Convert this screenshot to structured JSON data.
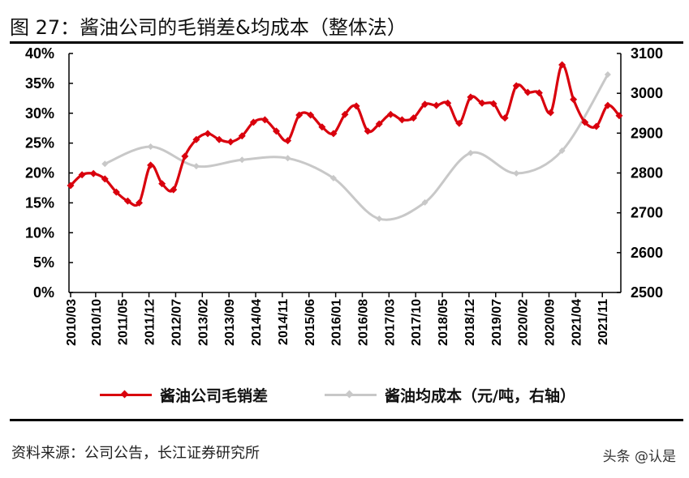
{
  "title": "图 27：酱油公司的毛销差&均成本（整体法）",
  "source": "资料来源：公司公告，长江证券研究所",
  "watermark": "头条 @认是",
  "chart_data": {
    "type": "line",
    "title": "酱油公司的毛销差&均成本（整体法）",
    "left_axis": {
      "ylim": [
        0,
        40
      ],
      "ticks": [
        "0%",
        "5%",
        "10%",
        "15%",
        "20%",
        "25%",
        "30%",
        "35%",
        "40%"
      ]
    },
    "right_axis": {
      "ylim": [
        2500,
        3100
      ],
      "ticks": [
        "2500",
        "2600",
        "2700",
        "2800",
        "2900",
        "3000",
        "3100"
      ]
    },
    "x_tick_labels": [
      "2010/03",
      "2010/10",
      "2011/05",
      "2011/12",
      "2012/07",
      "2013/02",
      "2013/09",
      "2014/04",
      "2014/11",
      "2015/06",
      "2016/01",
      "2016/08",
      "2017/03",
      "2017/10",
      "2018/05",
      "2018/12",
      "2019/07",
      "2020/02",
      "2020/09",
      "2021/04",
      "2021/11"
    ],
    "grid": false,
    "legend_position": "bottom",
    "series": [
      {
        "name": "酱油公司毛销差",
        "axis": "left",
        "color": "#d9000d",
        "x": [
          "2010/03",
          "2010/06",
          "2010/09",
          "2010/12",
          "2011/03",
          "2011/06",
          "2011/09",
          "2011/12",
          "2012/03",
          "2012/06",
          "2012/09",
          "2012/12",
          "2013/03",
          "2013/06",
          "2013/09",
          "2013/12",
          "2014/03",
          "2014/06",
          "2014/09",
          "2014/12",
          "2015/03",
          "2015/06",
          "2015/09",
          "2015/12",
          "2016/03",
          "2016/06",
          "2016/09",
          "2016/12",
          "2017/03",
          "2017/06",
          "2017/09",
          "2017/12",
          "2018/03",
          "2018/06",
          "2018/09",
          "2018/12",
          "2019/03",
          "2019/06",
          "2019/09",
          "2019/12",
          "2020/03",
          "2020/06",
          "2020/09",
          "2020/12",
          "2021/03",
          "2021/06",
          "2021/09",
          "2021/12",
          "2022/03"
        ],
        "values": [
          17.9,
          19.7,
          19.9,
          19.0,
          16.8,
          15.3,
          15.0,
          21.3,
          18.2,
          17.2,
          22.8,
          25.6,
          26.6,
          25.6,
          25.2,
          26.2,
          28.5,
          28.9,
          27.0,
          25.4,
          29.7,
          29.7,
          27.7,
          26.6,
          29.8,
          31.2,
          27.0,
          28.2,
          29.8,
          28.9,
          29.2,
          31.5,
          31.3,
          31.7,
          28.3,
          32.7,
          31.7,
          31.6,
          29.2,
          34.6,
          33.5,
          33.4,
          30.1,
          38.1,
          32.3,
          28.5,
          27.8,
          31.3,
          29.6
        ]
      },
      {
        "name": "酱油均成本（元/吨，右轴）",
        "axis": "right",
        "color": "#c8c8c8",
        "x": [
          "2010/12",
          "2011/12",
          "2012/12",
          "2013/12",
          "2014/12",
          "2015/12",
          "2016/12",
          "2017/12",
          "2018/12",
          "2019/12",
          "2020/12",
          "2021/12"
        ],
        "values": [
          2823,
          2866,
          2817,
          2833,
          2837,
          2787,
          2685,
          2726,
          2850,
          2799,
          2856,
          3047
        ]
      }
    ]
  }
}
